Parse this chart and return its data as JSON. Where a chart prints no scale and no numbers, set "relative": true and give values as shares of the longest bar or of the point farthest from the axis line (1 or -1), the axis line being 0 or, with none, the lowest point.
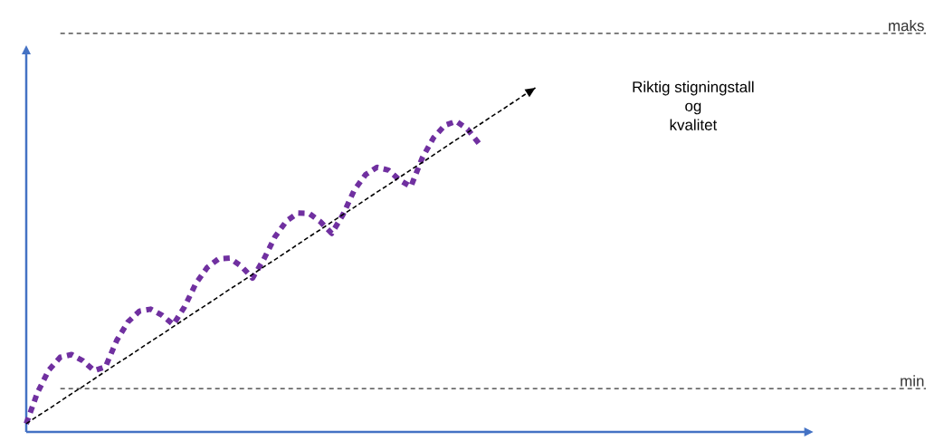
{
  "chart_data": {
    "type": "line",
    "relative": true,
    "marker": "none",
    "categories": [
      null,
      null,
      null,
      null,
      null,
      null,
      null,
      null,
      null,
      null,
      null,
      null,
      null,
      null,
      null,
      null,
      null,
      null,
      null,
      null,
      null,
      null,
      null,
      null,
      null,
      null,
      null,
      null,
      null,
      null,
      null,
      null,
      null,
      null,
      null,
      null,
      null,
      null,
      null,
      null,
      null,
      null,
      null,
      null,
      null,
      null
    ],
    "series": [
      {
        "color": "#7030a0",
        "line_style": "dashed",
        "values": [
          0.024,
          0.115,
          0.18,
          0.217,
          0.225,
          0.207,
          0.178,
          0.189,
          0.266,
          0.32,
          0.351,
          0.357,
          0.339,
          0.312,
          0.364,
          0.432,
          0.478,
          0.503,
          0.505,
          0.482,
          0.447,
          0.502,
          0.568,
          0.613,
          0.636,
          0.635,
          0.611,
          0.577,
          0.632,
          0.703,
          0.748,
          0.769,
          0.761,
          0.732,
          0.713,
          0.796,
          0.855,
          0.891,
          0.903,
          0.88,
          0.839,
          null,
          null,
          null,
          null,
          null
        ]
      },
      {
        "color": "#000000",
        "line_style": "dashed",
        "values": [
          0.024,
          0.046,
          0.067,
          0.089,
          0.111,
          0.132,
          0.154,
          0.176,
          0.198,
          0.219,
          0.241,
          0.263,
          0.284,
          0.306,
          0.328,
          0.35,
          0.371,
          0.393,
          0.415,
          0.436,
          0.458,
          0.48,
          0.501,
          0.523,
          0.545,
          0.567,
          0.588,
          0.61,
          0.632,
          0.653,
          0.675,
          0.697,
          0.718,
          0.74,
          0.762,
          0.783,
          0.805,
          0.827,
          0.849,
          0.87,
          0.892,
          0.914,
          0.935,
          0.957,
          0.979,
          1
        ]
      }
    ],
    "ref_lines": [
      {
        "axis": "y",
        "value": 1.158,
        "label": "maks",
        "line_style": "dashed"
      },
      {
        "axis": "y",
        "value": 0.126,
        "label": "min",
        "line_style": "dashed"
      }
    ],
    "annotations": [
      "Riktig stigningstall",
      "og",
      "kvalitet"
    ]
  }
}
